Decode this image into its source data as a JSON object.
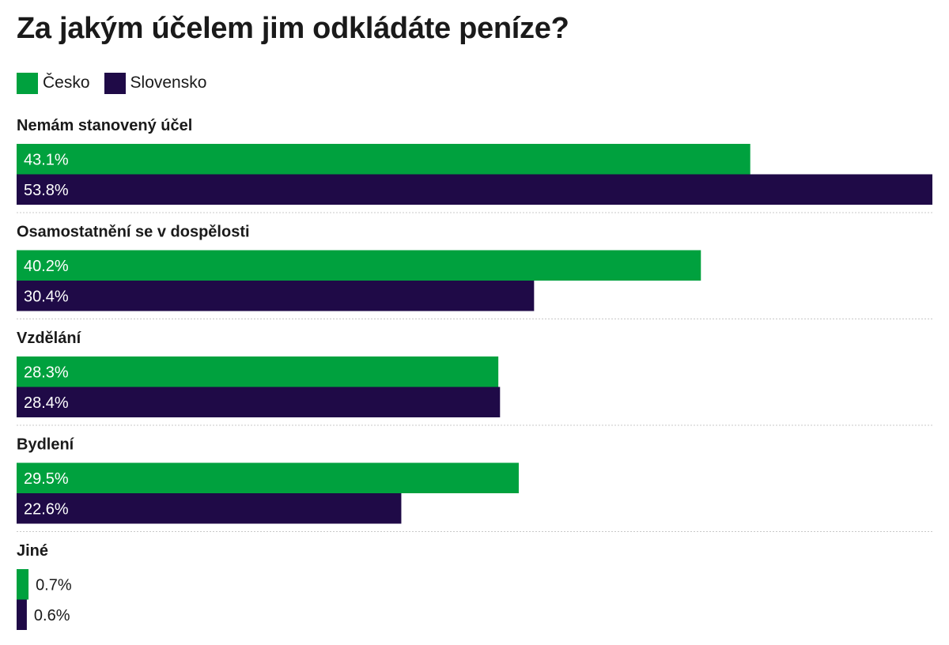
{
  "title": "Za jakým účelem jim odkládáte peníze?",
  "chart_data": {
    "type": "bar",
    "orientation": "horizontal",
    "title": "Za jakým účelem jim odkládáte peníze?",
    "value_suffix": "%",
    "xlim": [
      0,
      53.8
    ],
    "grid": false,
    "legend_position": "top-left",
    "categories": [
      "Nemám stanovený účel",
      "Osamostatnění se v dospělosti",
      "Vzdělání",
      "Bydlení",
      "Jiné"
    ],
    "series": [
      {
        "name": "Česko",
        "color": "#00a13e",
        "values": [
          43.1,
          40.2,
          28.3,
          29.5,
          0.7
        ]
      },
      {
        "name": "Slovensko",
        "color": "#1f0a47",
        "values": [
          53.8,
          30.4,
          28.4,
          22.6,
          0.6
        ]
      }
    ]
  }
}
